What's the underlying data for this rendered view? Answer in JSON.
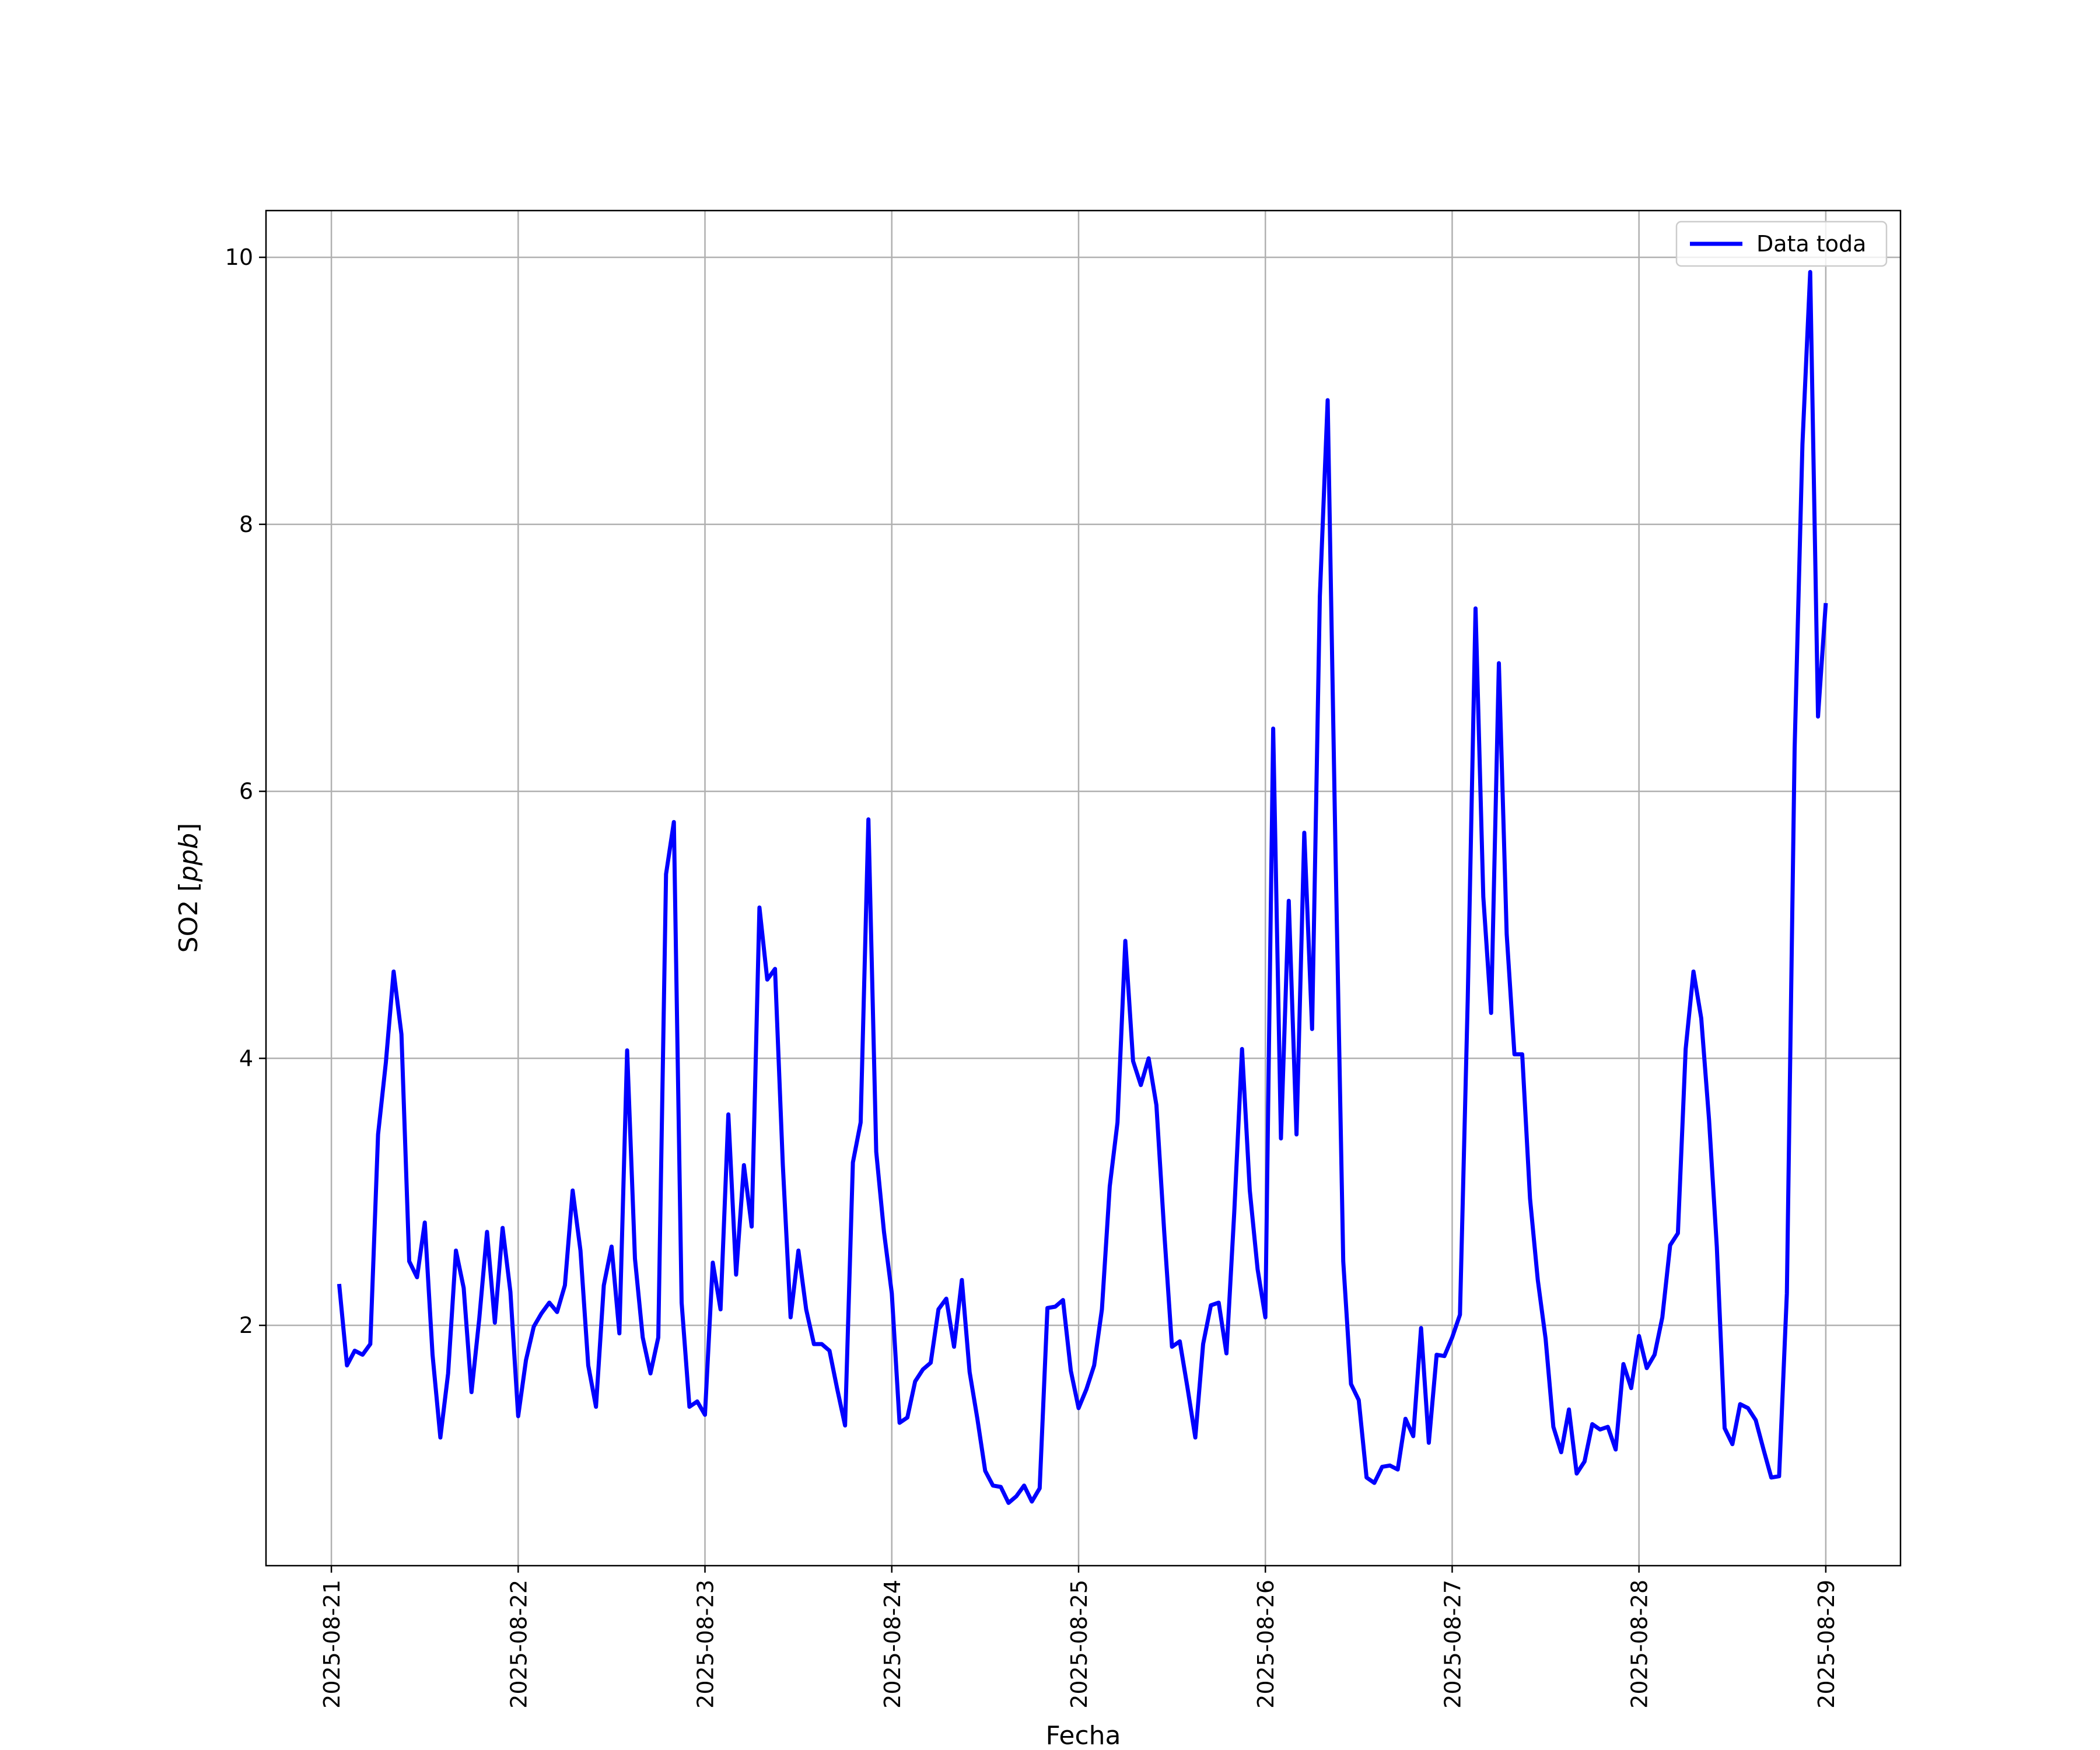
{
  "chart_data": {
    "type": "line",
    "title": "",
    "xlabel": "Fecha",
    "ylabel": "SO2 [ppb]",
    "ylabel_plain": "SO2 [",
    "ylabel_italic": "ppb",
    "ylabel_close": "]",
    "xlim": [
      "2025-08-20 15:36",
      "2025-08-29 09:36"
    ],
    "ylim": [
      0.2,
      10.35
    ],
    "x_ticks": [
      "2025-08-21",
      "2025-08-22",
      "2025-08-23",
      "2025-08-24",
      "2025-08-25",
      "2025-08-26",
      "2025-08-27",
      "2025-08-28",
      "2025-08-29"
    ],
    "y_ticks": [
      2,
      4,
      6,
      8,
      10
    ],
    "grid": true,
    "legend_position": "top-right",
    "x_tick_rotation": "vertical",
    "series": [
      {
        "name": "Data toda",
        "color": "#0000ff",
        "start": "2025-08-21 01:00",
        "interval_hours": 1,
        "values": [
          2.31,
          1.7,
          1.81,
          1.78,
          1.86,
          3.43,
          3.97,
          4.65,
          4.18,
          2.48,
          2.36,
          2.77,
          1.78,
          1.16,
          1.64,
          2.56,
          2.28,
          1.5,
          2.05,
          2.7,
          2.02,
          2.73,
          2.25,
          1.32,
          1.74,
          1.99,
          2.09,
          2.17,
          2.1,
          2.3,
          3.01,
          2.56,
          1.7,
          1.39,
          2.3,
          2.59,
          1.94,
          4.06,
          2.5,
          1.91,
          1.64,
          1.91,
          5.38,
          5.77,
          2.17,
          1.39,
          1.43,
          1.33,
          2.47,
          2.12,
          3.58,
          2.38,
          3.2,
          2.74,
          5.13,
          4.59,
          4.67,
          3.2,
          2.06,
          2.56,
          2.12,
          1.86,
          1.86,
          1.81,
          1.52,
          1.25,
          3.22,
          3.52,
          5.79,
          3.3,
          2.7,
          2.24,
          1.27,
          1.31,
          1.58,
          1.67,
          1.72,
          2.12,
          2.2,
          1.84,
          2.34,
          1.65,
          1.3,
          0.91,
          0.8,
          0.79,
          0.67,
          0.72,
          0.8,
          0.68,
          0.78,
          2.13,
          2.14,
          2.19,
          1.66,
          1.38,
          1.52,
          1.7,
          2.12,
          3.04,
          3.52,
          4.88,
          3.98,
          3.8,
          4.0,
          3.65,
          2.7,
          1.84,
          1.88,
          1.53,
          1.16,
          1.86,
          2.15,
          2.17,
          1.79,
          2.85,
          4.07,
          3.01,
          2.42,
          2.06,
          6.47,
          3.4,
          5.18,
          3.43,
          5.69,
          4.22,
          7.46,
          8.93,
          5.58,
          2.48,
          1.56,
          1.44,
          0.86,
          0.82,
          0.94,
          0.95,
          0.92,
          1.3,
          1.17,
          1.98,
          1.12,
          1.78,
          1.77,
          1.91,
          2.08,
          4.44,
          7.37,
          5.21,
          4.34,
          6.96,
          4.93,
          4.03,
          4.03,
          2.95,
          2.34,
          1.9,
          1.24,
          1.05,
          1.37,
          0.89,
          0.98,
          1.26,
          1.22,
          1.24,
          1.07,
          1.71,
          1.53,
          1.92,
          1.68,
          1.78,
          2.06,
          2.6,
          2.69,
          4.07,
          4.65,
          4.3,
          3.54,
          2.59,
          1.23,
          1.11,
          1.41,
          1.38,
          1.29,
          1.07,
          0.86,
          0.87,
          2.24,
          6.32,
          8.6,
          9.89,
          6.56,
          7.41
        ]
      }
    ]
  }
}
